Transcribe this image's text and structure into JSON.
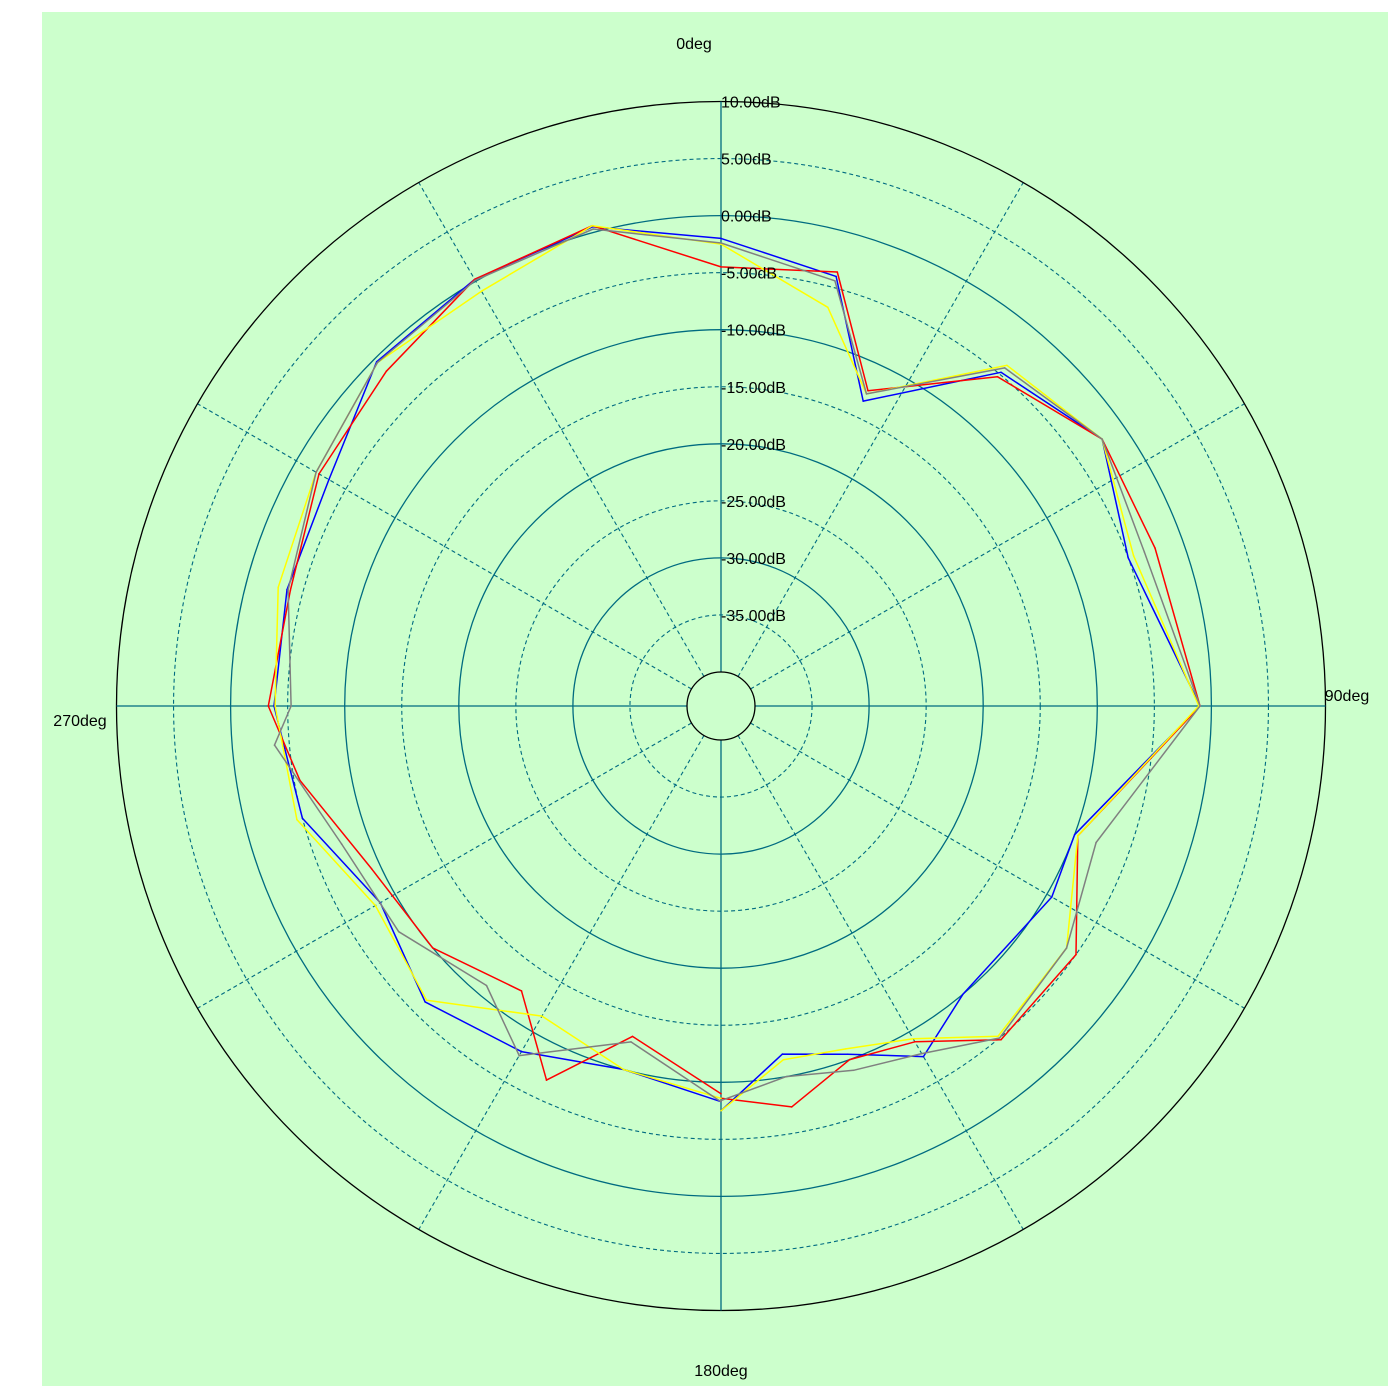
{
  "chart_data": {
    "type": "polar-line",
    "background_color": "#ccffcc",
    "grid_color": "#006b80",
    "angle_labels": [
      {
        "angle": 0,
        "label": "0deg"
      },
      {
        "angle": 90,
        "label": "90deg"
      },
      {
        "angle": 180,
        "label": "180deg"
      },
      {
        "angle": 270,
        "label": "270deg"
      }
    ],
    "radial_ticks": [
      {
        "value": 10,
        "label": "10.00dB"
      },
      {
        "value": 5,
        "label": "5.00dB"
      },
      {
        "value": 0,
        "label": "0.00dB"
      },
      {
        "value": -5,
        "label": "-5.00dB"
      },
      {
        "value": -10,
        "label": "-10.00dB"
      },
      {
        "value": -15,
        "label": "-15.00dB"
      },
      {
        "value": -20,
        "label": "-20.00dB"
      },
      {
        "value": -25,
        "label": "-25.00dB"
      },
      {
        "value": -30,
        "label": "-30.00dB"
      },
      {
        "value": -35,
        "label": "-35.00dB"
      }
    ],
    "radial_range_db": [
      -40,
      10
    ],
    "angle_grid_step_deg": 30,
    "series": [
      {
        "color": "#0000ff",
        "points": [
          [
            -180,
            -8.3
          ],
          [
            -165,
            -10.0
          ],
          [
            -150,
            -8.0
          ],
          [
            -135,
            -6.3
          ],
          [
            -120,
            -8.5
          ],
          [
            -105,
            -5.0
          ],
          [
            -90,
            -3.8
          ],
          [
            -75,
            -3.6
          ],
          [
            -60,
            -3.3
          ],
          [
            -45,
            -0.3
          ],
          [
            -30,
            0.2
          ],
          [
            -15,
            0.5
          ],
          [
            0,
            -2.0
          ],
          [
            15,
            -4.0
          ],
          [
            25,
            -13.5
          ],
          [
            40,
            -4.8
          ],
          [
            55,
            -2.2
          ],
          [
            70,
            -5.0
          ],
          [
            90,
            -1.0
          ],
          [
            110,
            -10.0
          ],
          [
            120,
            -9.5
          ],
          [
            140,
            -10.0
          ],
          [
            150,
            -7.5
          ],
          [
            160,
            -10.5
          ],
          [
            170,
            -12.0
          ],
          [
            180,
            -7.5
          ]
        ]
      },
      {
        "color": "#ff0000",
        "points": [
          [
            -180,
            -9.0
          ],
          [
            -165,
            -13.0
          ],
          [
            -155,
            -6.8
          ],
          [
            -145,
            -12.5
          ],
          [
            -130,
            -10.0
          ],
          [
            -115,
            -9.2
          ],
          [
            -100,
            -5.5
          ],
          [
            -90,
            -3.3
          ],
          [
            -75,
            -3.9
          ],
          [
            -60,
            -2.3
          ],
          [
            -45,
            -1.5
          ],
          [
            -30,
            0.2
          ],
          [
            -15,
            0.6
          ],
          [
            0,
            -4.5
          ],
          [
            15,
            -3.6
          ],
          [
            25,
            -12.5
          ],
          [
            40,
            -5.3
          ],
          [
            55,
            -2.2
          ],
          [
            70,
            -2.5
          ],
          [
            90,
            -1.0
          ],
          [
            110,
            -9.7
          ],
          [
            125,
            -5.0
          ],
          [
            140,
            -4.8
          ],
          [
            150,
            -9.0
          ],
          [
            160,
            -10.0
          ],
          [
            170,
            -7.3
          ],
          [
            180,
            -8.6
          ]
        ]
      },
      {
        "color": "#ffff00",
        "points": [
          [
            -180,
            -8.6
          ],
          [
            -165,
            -10.0
          ],
          [
            -150,
            -11.6
          ],
          [
            -135,
            -6.5
          ],
          [
            -120,
            -8.0
          ],
          [
            -105,
            -4.5
          ],
          [
            -90,
            -3.9
          ],
          [
            -75,
            -2.8
          ],
          [
            -60,
            -2.0
          ],
          [
            -45,
            -0.4
          ],
          [
            -30,
            -1.0
          ],
          [
            -15,
            0.6
          ],
          [
            0,
            -2.5
          ],
          [
            15,
            -6.8
          ],
          [
            25,
            -12.8
          ],
          [
            40,
            -4.0
          ],
          [
            55,
            -2.2
          ],
          [
            70,
            -4.5
          ],
          [
            90,
            -1.1
          ],
          [
            110,
            -9.7
          ],
          [
            125,
            -6.0
          ],
          [
            140,
            -5.2
          ],
          [
            150,
            -9.3
          ],
          [
            160,
            -11.0
          ],
          [
            170,
            -11.5
          ],
          [
            180,
            -7.5
          ]
        ]
      },
      {
        "color": "#808080",
        "points": [
          [
            -180,
            -8.3
          ],
          [
            -165,
            -12.5
          ],
          [
            -150,
            -7.6
          ],
          [
            -140,
            -11.0
          ],
          [
            -125,
            -8.5
          ],
          [
            -110,
            -7.6
          ],
          [
            -95,
            -3.7
          ],
          [
            -90,
            -5.3
          ],
          [
            -75,
            -3.7
          ],
          [
            -60,
            -2.0
          ],
          [
            -45,
            -0.4
          ],
          [
            -30,
            0.1
          ],
          [
            -15,
            0.3
          ],
          [
            0,
            -2.4
          ],
          [
            15,
            -4.4
          ],
          [
            25,
            -12.8
          ],
          [
            40,
            -4.3
          ],
          [
            55,
            -2.2
          ],
          [
            70,
            -3.5
          ],
          [
            90,
            -1.0
          ],
          [
            110,
            -8.0
          ],
          [
            125,
            -6.0
          ],
          [
            140,
            -5.0
          ],
          [
            150,
            -7.8
          ],
          [
            160,
            -9.0
          ],
          [
            170,
            -10.0
          ],
          [
            180,
            -8.4
          ]
        ]
      }
    ]
  }
}
